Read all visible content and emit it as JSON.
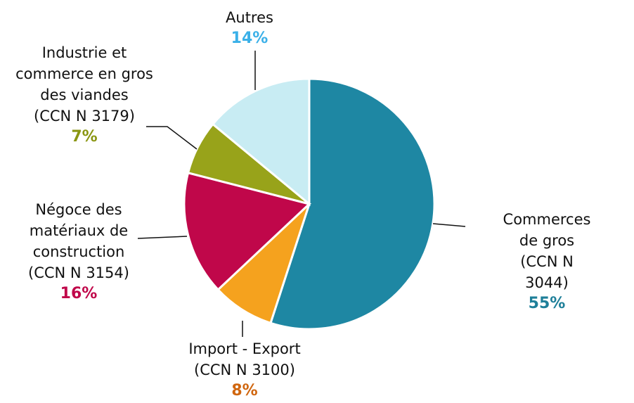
{
  "chart_data": {
    "type": "pie",
    "categories": [
      "Commerces de gros\n(CCN N  3044)",
      "Import - Export\n(CCN N  3100)",
      "Négoce des\nmatériaux de\nconstruction\n(CCN N  3154)",
      "Industrie et\ncommerce en gros\ndes viandes\n(CCN N  3179)",
      "Autres"
    ],
    "values": [
      55,
      8,
      16,
      7,
      14
    ],
    "value_labels": [
      "55%",
      "8%",
      "16%",
      "7%",
      "14%"
    ],
    "colors": [
      "#1e87a3",
      "#f5a21e",
      "#c0074a",
      "#98a31a",
      "#c8ecf3"
    ],
    "label_colors": [
      "#1e7f99",
      "#d0660f",
      "#c0074a",
      "#8a9612",
      "#3ab0e8"
    ]
  }
}
